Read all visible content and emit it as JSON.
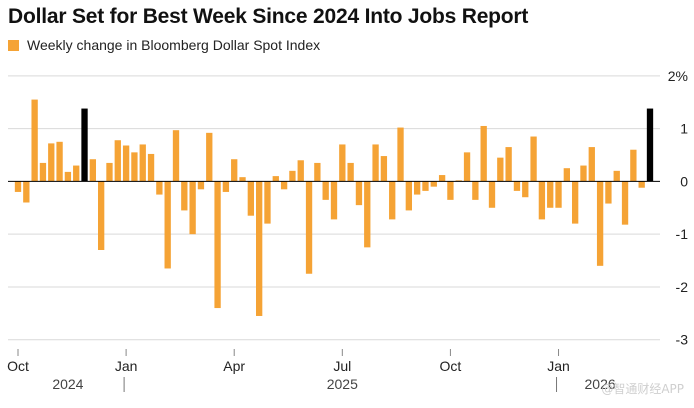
{
  "title": "Dollar Set for Best Week Since 2024 Into Jobs Report",
  "legend": {
    "label": "Weekly change in Bloomberg Dollar Spot Index",
    "color": "#f5a335"
  },
  "colors": {
    "bar_default": "#f5a335",
    "bar_highlight": "#000000",
    "grid": "#d9d9d9",
    "axis_text": "#222222",
    "year_text": "#444444",
    "zero_line": "#000000"
  },
  "watermark": "@智通财经APP",
  "chart_data": {
    "type": "bar",
    "title": "Dollar Set for Best Week Since 2024 Into Jobs Report",
    "xlabel": "",
    "ylabel": "",
    "ylim": [
      -3.1,
      2.3
    ],
    "y_ticks": [
      2,
      1,
      0,
      -1,
      -2,
      -3
    ],
    "y_tick_labels": [
      "2%",
      "1",
      "0",
      "-1",
      "-2",
      "-3"
    ],
    "grid": true,
    "series": [
      {
        "values": [
          -0.2,
          -0.4,
          1.55,
          0.35,
          0.72,
          0.75,
          0.18,
          0.3,
          1.38,
          0.42,
          -1.3,
          0.35,
          0.78,
          0.68,
          0.55,
          0.7,
          0.52,
          -0.25,
          -1.65,
          0.97,
          -0.55,
          -1.0,
          -0.15,
          0.92,
          -2.4,
          -0.2,
          0.42,
          0.08,
          -0.65,
          -2.55,
          -0.8,
          0.1,
          -0.15,
          0.2,
          0.4,
          -1.75,
          0.35,
          -0.35,
          -0.72,
          0.7,
          0.35,
          -0.45,
          -1.25,
          0.7,
          0.48,
          -0.72,
          1.02,
          -0.55,
          -0.25,
          -0.18,
          -0.1,
          0.12,
          -0.35,
          0.02,
          0.55,
          -0.35,
          1.05,
          -0.5,
          0.45,
          0.65,
          -0.18,
          -0.3,
          0.85,
          -0.72,
          -0.5,
          -0.5,
          0.25,
          -0.8,
          0.3,
          0.65,
          -1.6,
          -0.42,
          0.2,
          -0.82,
          0.6,
          -0.12,
          1.38
        ],
        "highlight_indices": [
          8,
          76
        ]
      }
    ],
    "x_ticks": [
      {
        "label": "Oct",
        "index": 0
      },
      {
        "label": "Jan",
        "index": 13
      },
      {
        "label": "Apr",
        "index": 26
      },
      {
        "label": "Jul",
        "index": 39
      },
      {
        "label": "Oct",
        "index": 52
      },
      {
        "label": "Jan",
        "index": 65
      }
    ],
    "year_labels": [
      {
        "label": "2024",
        "index": 6
      },
      {
        "label": "2025",
        "index": 39
      },
      {
        "label": "2026",
        "index": 70
      }
    ],
    "year_separators": [
      13,
      65
    ]
  }
}
